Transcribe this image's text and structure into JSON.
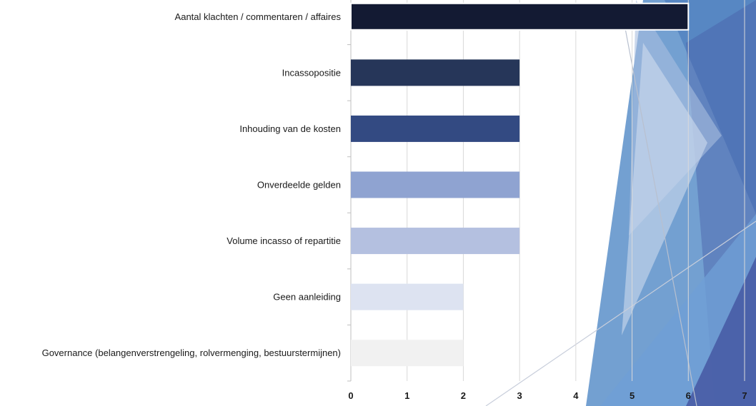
{
  "chart_data": {
    "type": "bar",
    "orientation": "horizontal",
    "categories": [
      "Aantal klachten / commentaren / affaires",
      "Incassopositie",
      "Inhouding van de kosten",
      "Onverdeelde gelden",
      "Volume incasso of repartitie",
      "Geen aanleiding",
      "Governance (belangenverstrengeling, rolvermenging, bestuurstermijnen)"
    ],
    "values": [
      6,
      3,
      3,
      3,
      3,
      2,
      2
    ],
    "bar_colors": [
      "#131a33",
      "#263659",
      "#334a82",
      "#8fa3d1",
      "#b4c0e0",
      "#dde3f1",
      "#f1f1f1"
    ],
    "xlim": [
      0,
      7
    ],
    "xticks": [
      "0",
      "1",
      "2",
      "3",
      "4",
      "5",
      "6",
      "7"
    ],
    "grid": true,
    "title": "",
    "xlabel": "",
    "ylabel": ""
  },
  "decoration": {
    "colors": [
      "#5b8fc9",
      "#3f73b8",
      "#4a5fa8",
      "#a9bee0",
      "#d6e0f0",
      "#6f9fd6"
    ]
  }
}
